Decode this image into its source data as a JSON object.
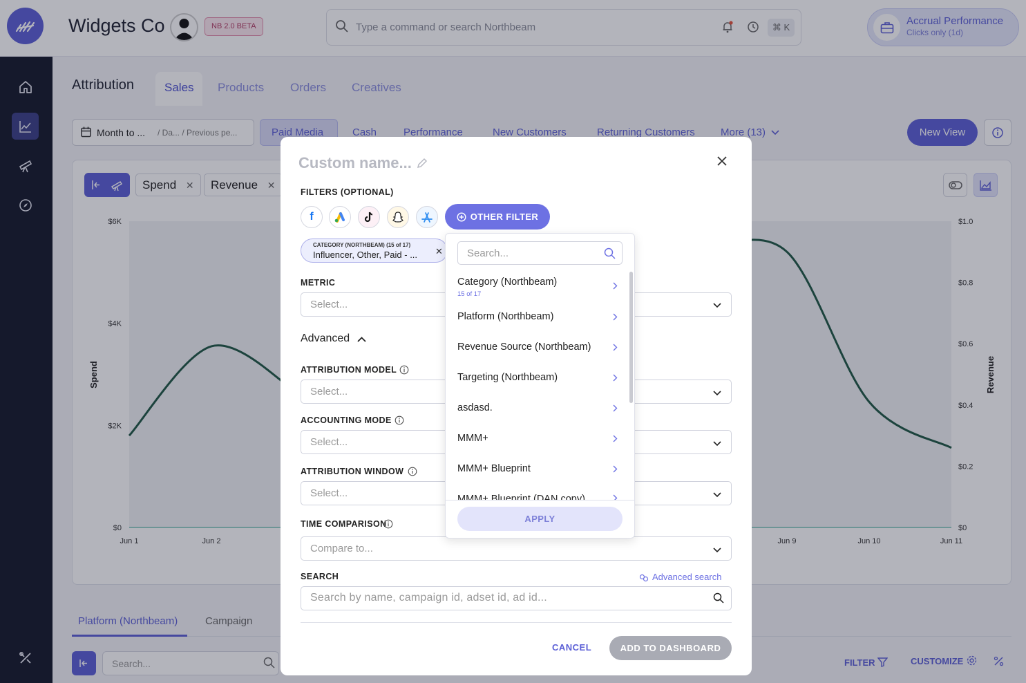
{
  "header": {
    "company": "Widgets Co",
    "beta_badge": "NB 2.0 BETA",
    "command_placeholder": "Type a command or search Northbeam",
    "shortcut": "⌘ K",
    "accrual_title": "Accrual Performance",
    "accrual_subtitle": "Clicks only (1d)"
  },
  "sidebar": {
    "items": [
      "home-icon",
      "chart-icon",
      "telescope-icon",
      "compass-icon",
      "tools-icon"
    ]
  },
  "page": {
    "title": "Attribution",
    "tabs": [
      {
        "label": "Sales"
      },
      {
        "label": "Products"
      },
      {
        "label": "Orders"
      },
      {
        "label": "Creatives"
      }
    ],
    "date_primary": "Month to ...",
    "date_secondary": "/ Da...  / Previous pe...",
    "view_tabs": [
      {
        "label": "Paid Media"
      },
      {
        "label": "Cash"
      },
      {
        "label": "Performance"
      },
      {
        "label": "New Customers"
      },
      {
        "label": "Returning Customers"
      },
      {
        "label": "More (13)"
      }
    ],
    "new_view": "New View"
  },
  "chart": {
    "chips": [
      {
        "label": "Spend"
      },
      {
        "label": "Revenue"
      }
    ],
    "left_axis_label": "Spend",
    "right_axis_label": "Revenue",
    "left_ticks": [
      "$6K",
      "$4K",
      "$2K",
      "$0"
    ],
    "right_ticks": [
      "$1.0",
      "$0.8",
      "$0.6",
      "$0.4",
      "$0.2",
      "$0"
    ],
    "x_ticks": [
      "Jun 1",
      "Jun 2",
      "Jun 9",
      "Jun 10",
      "Jun 11"
    ]
  },
  "chart_data": {
    "type": "line",
    "x": [
      "Jun 1",
      "Jun 2",
      "Jun 3",
      "Jun 4",
      "Jun 5",
      "Jun 6",
      "Jun 7",
      "Jun 8",
      "Jun 9",
      "Jun 10",
      "Jun 11"
    ],
    "series": [
      {
        "name": "Spend",
        "axis": "left",
        "values": [
          1800,
          3550,
          2700,
          null,
          null,
          null,
          null,
          null,
          null,
          null,
          null
        ]
      },
      {
        "name": "Revenue",
        "axis": "right",
        "values": [
          null,
          null,
          null,
          null,
          null,
          null,
          null,
          0.91,
          0.9,
          0.41,
          0.26
        ]
      }
    ],
    "ylim_left": [
      0,
      6000
    ],
    "ylim_right": [
      0,
      1.0
    ],
    "ylabel_left": "Spend",
    "ylabel_right": "Revenue",
    "color": "#1f5744"
  },
  "bottom": {
    "tabs": [
      {
        "label": "Platform (Northbeam)"
      },
      {
        "label": "Campaign"
      }
    ],
    "search_placeholder": "Search...",
    "filter": "FILTER",
    "customize": "CUSTOMIZE"
  },
  "modal": {
    "name_placeholder": "Custom name...",
    "filters_label": "FILTERS (OPTIONAL)",
    "sources": [
      "facebook-icon",
      "google-ads-icon",
      "tiktok-icon",
      "snapchat-icon",
      "app-store-icon"
    ],
    "other_filter": "OTHER FILTER",
    "filter_chip_title": "CATEGORY (NORTHBEAM) (15 of 17)",
    "filter_chip_value": "Influencer, Other, Paid - ...",
    "metric_label": "METRIC",
    "select_placeholder": "Select...",
    "advanced": "Advanced",
    "attribution_model_label": "ATTRIBUTION MODEL",
    "accounting_mode_label": "ACCOUNTING MODE",
    "attribution_window_label": "ATTRIBUTION WINDOW",
    "time_comparison_label": "TIME COMPARISON",
    "compare_placeholder": "Compare to...",
    "search_label": "SEARCH",
    "advanced_search": "Advanced search",
    "search_placeholder": "Search by name, campaign id, adset id, ad id...",
    "cancel": "CANCEL",
    "add": "ADD TO DASHBOARD"
  },
  "dropdown": {
    "search_placeholder": "Search...",
    "items": [
      {
        "label": "Category (Northbeam)",
        "sub": "15 of 17"
      },
      {
        "label": "Platform (Northbeam)"
      },
      {
        "label": "Revenue Source (Northbeam)"
      },
      {
        "label": "Targeting (Northbeam)"
      },
      {
        "label": "asdasd."
      },
      {
        "label": "MMM+"
      },
      {
        "label": "MMM+ Blueprint"
      },
      {
        "label": "MMM+ Blueprint (DAN copy)"
      }
    ],
    "apply": "APPLY"
  }
}
